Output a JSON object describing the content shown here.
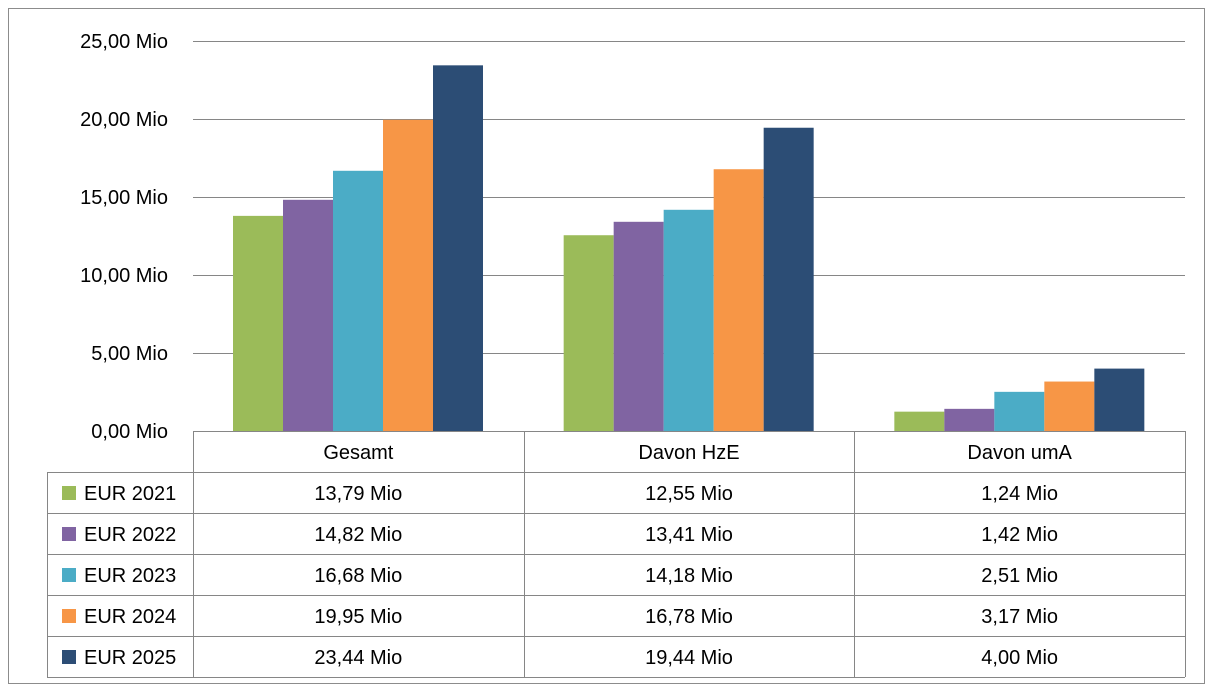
{
  "chart_data": {
    "type": "bar",
    "title": "",
    "xlabel": "",
    "ylabel": "",
    "categories": [
      "Gesamt",
      "Davon HzE",
      "Davon umA"
    ],
    "ylim": [
      0,
      25
    ],
    "yticks": [
      0,
      5,
      10,
      15,
      20,
      25
    ],
    "ytick_labels": [
      "0,00 Mio",
      "5,00 Mio",
      "10,00 Mio",
      "15,00 Mio",
      "20,00 Mio",
      "25,00 Mio"
    ],
    "grid": true,
    "legend": "data-table-left",
    "series": [
      {
        "name": "EUR 2021",
        "color": "#9BBB59",
        "values": [
          13.79,
          12.55,
          1.24
        ],
        "labels": [
          "13,79 Mio",
          "12,55 Mio",
          "1,24 Mio"
        ]
      },
      {
        "name": "EUR 2022",
        "color": "#8064A2",
        "values": [
          14.82,
          13.41,
          1.42
        ],
        "labels": [
          "14,82 Mio",
          "13,41 Mio",
          "1,42 Mio"
        ]
      },
      {
        "name": "EUR 2023",
        "color": "#4BACC6",
        "values": [
          16.68,
          14.18,
          2.51
        ],
        "labels": [
          "16,68 Mio",
          "14,18 Mio",
          "2,51 Mio"
        ]
      },
      {
        "name": "EUR 2024",
        "color": "#F79646",
        "values": [
          19.95,
          16.78,
          3.17
        ],
        "labels": [
          "19,95 Mio",
          "16,78 Mio",
          "3,17 Mio"
        ]
      },
      {
        "name": "EUR 2025",
        "color": "#2C4D75",
        "values": [
          23.44,
          19.44,
          4.0
        ],
        "labels": [
          "23,44 Mio",
          "19,44 Mio",
          "4,00 Mio"
        ]
      }
    ]
  }
}
